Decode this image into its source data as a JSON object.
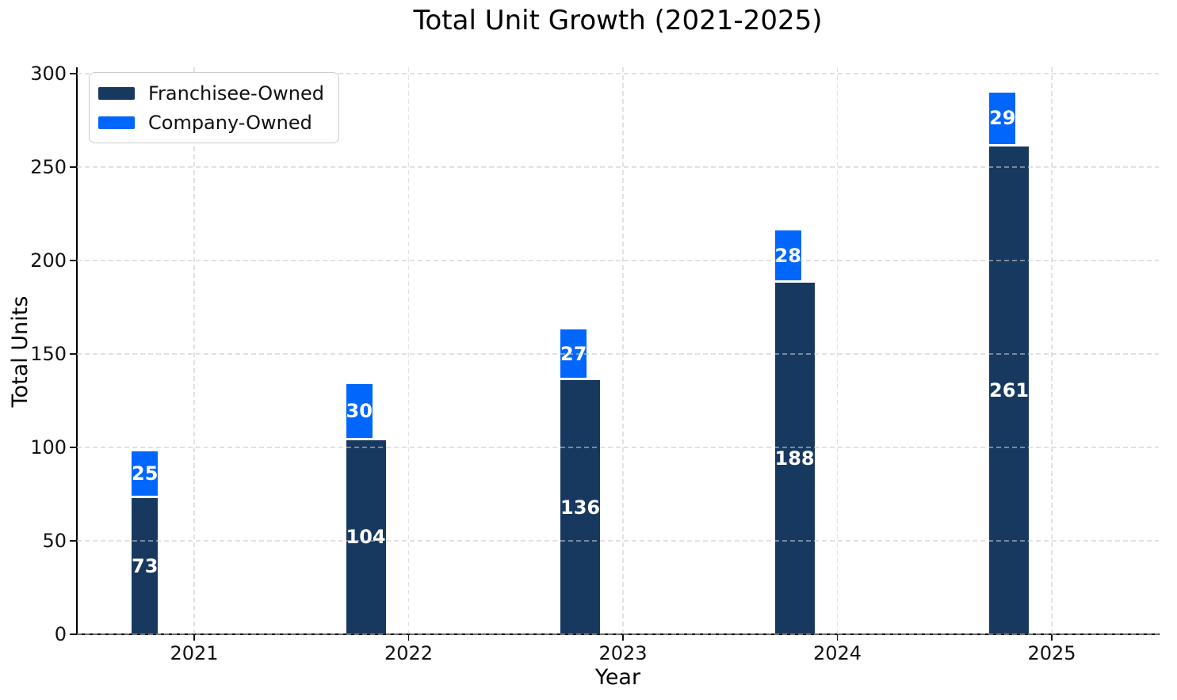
{
  "chart_data": {
    "type": "bar",
    "stacked": true,
    "title": "Total Unit Growth (2021-2025)",
    "xlabel": "Year",
    "ylabel": "Total Units",
    "categories": [
      "2021",
      "2022",
      "2023",
      "2024",
      "2025"
    ],
    "series": [
      {
        "name": "Franchisee-Owned",
        "color": "#17395f",
        "values": [
          73,
          104,
          136,
          188,
          261
        ]
      },
      {
        "name": "Company-Owned",
        "color": "#0066fc",
        "values": [
          25,
          30,
          27,
          28,
          29
        ]
      }
    ],
    "yticks": [
      0,
      50,
      100,
      150,
      200,
      250,
      300
    ],
    "ylim": [
      0,
      300
    ],
    "bar_labels": true,
    "bar_label_color": "#ffffff",
    "grid": "dashed, both axes, drawn above bars",
    "grid_color": "#d9d9d9",
    "axis_color": "#000000",
    "background": "#ffffff",
    "legend_position": "upper left"
  }
}
